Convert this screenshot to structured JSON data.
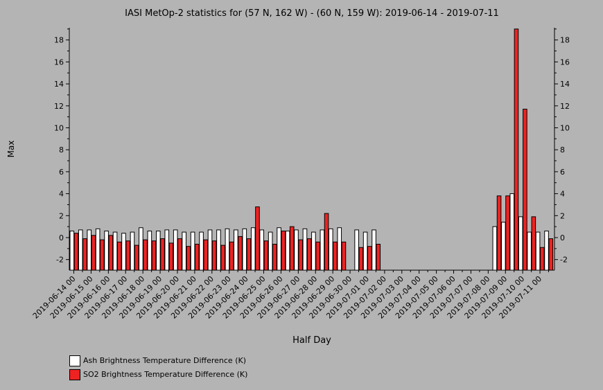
{
  "chart_data": {
    "type": "bar",
    "title": "IASI MetOp-2 statistics for (57 N, 162 W) - (60 N, 159 W): 2019-06-14 - 2019-07-11",
    "xlabel": "Half Day",
    "ylabel": "Max",
    "ylim": [
      -3,
      19
    ],
    "yticks": [
      -2,
      0,
      2,
      4,
      6,
      8,
      10,
      12,
      14,
      16,
      18
    ],
    "xtick_labels": [
      "2019-06-14 00",
      "2019-06-15 00",
      "2019-06-16 00",
      "2019-06-17 00",
      "2019-06-18 00",
      "2019-06-19 00",
      "2019-06-20 00",
      "2019-06-21 00",
      "2019-06-22 00",
      "2019-06-23 00",
      "2019-06-24 00",
      "2019-06-25 00",
      "2019-06-26 00",
      "2019-06-27 00",
      "2019-06-28 00",
      "2019-06-29 00",
      "2019-06-30 00",
      "2019-07-01 00",
      "2019-07-02 00",
      "2019-07-03 00",
      "2019-07-04 00",
      "2019-07-05 00",
      "2019-07-06 00",
      "2019-07-07 00",
      "2019-07-08 00",
      "2019-07-09 00",
      "2019-07-10 00",
      "2019-07-11 00"
    ],
    "series": [
      {
        "name": "Ash Brightness Temperature Difference (K)",
        "color": "#ffffff",
        "values": [
          0.6,
          0.7,
          0.7,
          0.8,
          0.6,
          0.5,
          0.4,
          0.5,
          0.9,
          0.6,
          0.6,
          0.7,
          0.7,
          0.5,
          0.5,
          0.5,
          0.7,
          0.7,
          0.8,
          0.7,
          0.8,
          0.9,
          0.7,
          0.5,
          0.9,
          0.6,
          0.7,
          0.8,
          0.5,
          0.7,
          0.8,
          0.9,
          null,
          0.7,
          0.5,
          0.7,
          null,
          null,
          null,
          null,
          null,
          null,
          null,
          null,
          null,
          null,
          null,
          null,
          null,
          1.0,
          1.4,
          4.0,
          1.9,
          0.5,
          0.5,
          0.6
        ]
      },
      {
        "name": "SO2 Brightness Temperature Difference (K)",
        "color": "#ee2222",
        "values": [
          0.4,
          -0.1,
          0.2,
          -0.2,
          0.2,
          -0.4,
          -0.3,
          -0.7,
          -0.2,
          -0.3,
          -0.1,
          -0.5,
          -0.1,
          -0.8,
          -0.6,
          -0.2,
          -0.3,
          -0.7,
          -0.4,
          0.1,
          -0.1,
          2.8,
          -0.3,
          -0.6,
          0.6,
          1.0,
          -0.2,
          -0.1,
          -0.4,
          2.2,
          -0.4,
          -0.4,
          null,
          -0.9,
          -0.8,
          -0.6,
          null,
          null,
          null,
          null,
          null,
          null,
          null,
          null,
          null,
          null,
          null,
          null,
          null,
          3.8,
          3.8,
          19.0,
          11.7,
          1.9,
          -0.9,
          -0.1
        ]
      }
    ],
    "legend": "bottom-left",
    "grid": false
  }
}
